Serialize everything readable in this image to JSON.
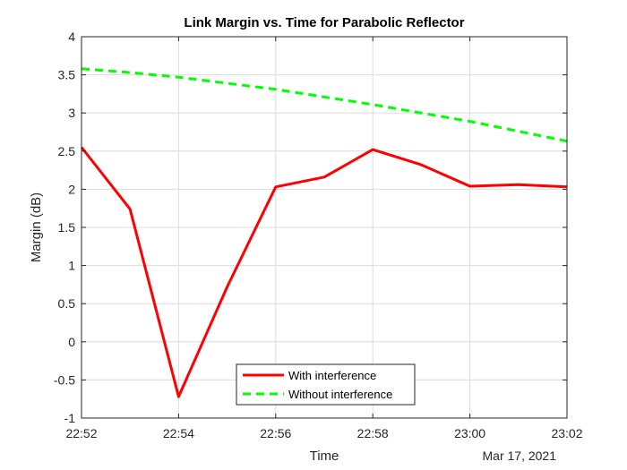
{
  "chart_data": {
    "type": "line",
    "title": "Link Margin vs. Time for Parabolic Reflector",
    "xlabel": "Time",
    "ylabel": "Margin (dB)",
    "date_label": "Mar 17, 2021",
    "x": [
      "22:52",
      "22:53",
      "22:54",
      "22:55",
      "22:56",
      "22:57",
      "22:58",
      "22:59",
      "23:00",
      "23:01",
      "23:02"
    ],
    "xticks": [
      "22:52",
      "22:54",
      "22:56",
      "22:58",
      "23:00",
      "23:02"
    ],
    "yticks": [
      "-1",
      "-0.5",
      "0",
      "0.5",
      "1",
      "1.5",
      "2",
      "2.5",
      "3",
      "3.5",
      "4"
    ],
    "ylim": [
      -1,
      4
    ],
    "grid": true,
    "legend_position": "bottom-center",
    "series": [
      {
        "name": "With interference",
        "color": "#ff0000",
        "style": "solid",
        "values": [
          2.55,
          1.74,
          -0.72,
          0.72,
          2.03,
          2.16,
          2.52,
          2.32,
          2.04,
          2.06,
          2.03
        ]
      },
      {
        "name": "Without interference",
        "color": "#00ff00",
        "style": "dashed",
        "values": [
          3.58,
          3.53,
          3.47,
          3.39,
          3.31,
          3.21,
          3.11,
          3.0,
          2.89,
          2.76,
          2.63
        ]
      }
    ]
  }
}
